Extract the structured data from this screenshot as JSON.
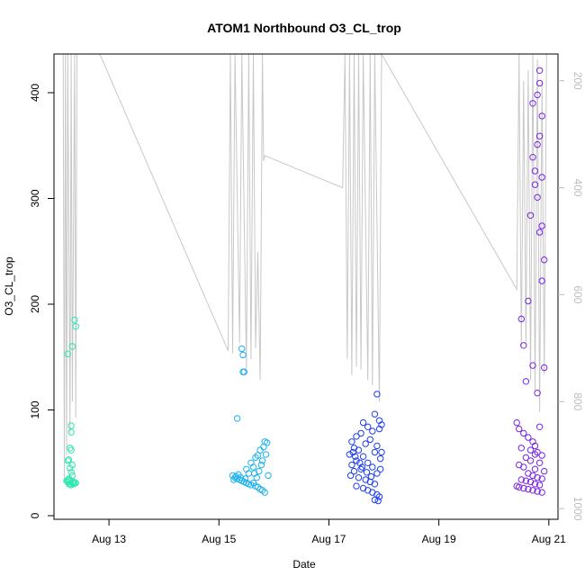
{
  "chart_data": {
    "type": "scatter",
    "title": "ATOM1 Northbound O3_CL_trop",
    "xlabel": "Date",
    "ylabel": "O3_CL_trop",
    "x_range": [
      "2016-08-12T00:00",
      "2016-08-21T04:00"
    ],
    "y_range": [
      0,
      440
    ],
    "x_ticks": [
      {
        "label": "Aug 13",
        "x": "2016-08-13"
      },
      {
        "label": "Aug 15",
        "x": "2016-08-15"
      },
      {
        "label": "Aug 17",
        "x": "2016-08-17"
      },
      {
        "label": "Aug 19",
        "x": "2016-08-19"
      },
      {
        "label": "Aug 21",
        "x": "2016-08-21"
      }
    ],
    "y_ticks": [
      0,
      100,
      200,
      300,
      400
    ],
    "right_axis": {
      "range": [
        1020,
        150
      ],
      "ticks": [
        200,
        400,
        600,
        800,
        1000
      ],
      "color": "#bdbdbd",
      "reversed": true,
      "description": "secondary pressure trace in light gray; axis is unlabeled"
    },
    "grid": false,
    "legend": "none",
    "series": [
      {
        "color": "#2ee6b0",
        "points": [
          [
            "2016-08-12T06:00",
            153
          ],
          [
            "2016-08-12T08:00",
            160
          ],
          [
            "2016-08-12T09:00",
            185
          ],
          [
            "2016-08-12T09:30",
            179
          ],
          [
            "2016-08-12T07:30",
            85
          ],
          [
            "2016-08-12T07:30",
            79
          ],
          [
            "2016-08-12T07:00",
            64
          ],
          [
            "2016-08-12T07:30",
            62
          ],
          [
            "2016-08-12T06:00",
            52
          ],
          [
            "2016-08-12T06:30",
            53
          ],
          [
            "2016-08-12T08:00",
            48
          ],
          [
            "2016-08-12T07:00",
            45
          ],
          [
            "2016-08-12T07:30",
            41
          ],
          [
            "2016-08-12T08:00",
            38
          ],
          [
            "2016-08-12T06:30",
            35
          ],
          [
            "2016-08-12T07:00",
            33
          ],
          [
            "2016-08-12T06:00",
            32
          ],
          [
            "2016-08-12T08:00",
            31
          ],
          [
            "2016-08-12T09:00",
            31
          ],
          [
            "2016-08-12T06:30",
            30
          ],
          [
            "2016-08-12T07:00",
            30
          ],
          [
            "2016-08-12T07:30",
            29
          ],
          [
            "2016-08-12T08:30",
            32
          ],
          [
            "2016-08-12T06:00",
            34
          ],
          [
            "2016-08-12T05:30",
            33
          ],
          [
            "2016-08-12T08:30",
            30
          ],
          [
            "2016-08-12T09:30",
            31
          ]
        ]
      },
      {
        "color": "#1fb2ee",
        "points": [
          [
            "2016-08-15T10:00",
            158
          ],
          [
            "2016-08-15T10:30",
            152
          ],
          [
            "2016-08-15T10:30",
            136
          ],
          [
            "2016-08-15T11:00",
            136
          ],
          [
            "2016-08-15T08:00",
            92
          ],
          [
            "2016-08-15T20:00",
            70
          ],
          [
            "2016-08-15T21:00",
            69
          ],
          [
            "2016-08-15T19:30",
            65
          ],
          [
            "2016-08-15T18:00",
            62
          ],
          [
            "2016-08-15T20:30",
            58
          ],
          [
            "2016-08-15T17:00",
            57
          ],
          [
            "2016-08-15T16:00",
            55
          ],
          [
            "2016-08-15T19:00",
            52
          ],
          [
            "2016-08-15T14:00",
            50
          ],
          [
            "2016-08-15T18:30",
            48
          ],
          [
            "2016-08-15T15:00",
            46
          ],
          [
            "2016-08-15T12:00",
            44
          ],
          [
            "2016-08-15T17:30",
            42
          ],
          [
            "2016-08-15T13:00",
            40
          ],
          [
            "2016-08-15T21:30",
            38
          ],
          [
            "2016-08-15T06:00",
            38
          ],
          [
            "2016-08-15T07:00",
            36
          ],
          [
            "2016-08-15T08:00",
            35
          ],
          [
            "2016-08-15T09:00",
            34
          ],
          [
            "2016-08-15T10:00",
            33
          ],
          [
            "2016-08-15T11:00",
            32
          ],
          [
            "2016-08-15T12:00",
            31
          ],
          [
            "2016-08-15T13:00",
            30
          ],
          [
            "2016-08-15T14:00",
            29
          ],
          [
            "2016-08-15T15:00",
            31
          ],
          [
            "2016-08-15T16:00",
            28
          ],
          [
            "2016-08-15T17:00",
            27
          ],
          [
            "2016-08-15T18:00",
            25
          ],
          [
            "2016-08-15T19:00",
            24
          ],
          [
            "2016-08-15T20:00",
            22
          ],
          [
            "2016-08-15T06:30",
            34
          ],
          [
            "2016-08-15T07:30",
            37
          ],
          [
            "2016-08-15T08:30",
            39
          ],
          [
            "2016-08-15T09:30",
            36
          ],
          [
            "2016-08-15T11:30",
            35
          ],
          [
            "2016-08-15T16:30",
            36
          ],
          [
            "2016-08-15T15:30",
            40
          ]
        ]
      },
      {
        "color": "#1f3ff0",
        "points": [
          [
            "2016-08-17T21:00",
            115
          ],
          [
            "2016-08-17T20:00",
            96
          ],
          [
            "2016-08-17T22:00",
            90
          ],
          [
            "2016-08-17T23:00",
            86
          ],
          [
            "2016-08-17T15:00",
            88
          ],
          [
            "2016-08-17T17:00",
            84
          ],
          [
            "2016-08-17T22:00",
            82
          ],
          [
            "2016-08-17T19:00",
            80
          ],
          [
            "2016-08-17T14:00",
            78
          ],
          [
            "2016-08-17T12:00",
            75
          ],
          [
            "2016-08-17T18:00",
            72
          ],
          [
            "2016-08-17T10:00",
            70
          ],
          [
            "2016-08-17T16:00",
            68
          ],
          [
            "2016-08-17T21:00",
            66
          ],
          [
            "2016-08-17T11:00",
            64
          ],
          [
            "2016-08-17T13:00",
            62
          ],
          [
            "2016-08-17T20:00",
            60
          ],
          [
            "2016-08-17T09:00",
            58
          ],
          [
            "2016-08-17T15:00",
            56
          ],
          [
            "2016-08-17T22:30",
            54
          ],
          [
            "2016-08-17T12:00",
            52
          ],
          [
            "2016-08-17T17:00",
            50
          ],
          [
            "2016-08-17T10:00",
            48
          ],
          [
            "2016-08-17T19:00",
            46
          ],
          [
            "2016-08-17T14:00",
            44
          ],
          [
            "2016-08-17T11:00",
            42
          ],
          [
            "2016-08-17T21:00",
            40
          ],
          [
            "2016-08-17T09:30",
            38
          ],
          [
            "2016-08-17T13:00",
            36
          ],
          [
            "2016-08-17T16:00",
            34
          ],
          [
            "2016-08-17T18:00",
            32
          ],
          [
            "2016-08-17T20:00",
            30
          ],
          [
            "2016-08-17T12:00",
            28
          ],
          [
            "2016-08-17T15:00",
            26
          ],
          [
            "2016-08-17T17:00",
            24
          ],
          [
            "2016-08-17T19:00",
            22
          ],
          [
            "2016-08-17T21:00",
            20
          ],
          [
            "2016-08-17T22:00",
            18
          ],
          [
            "2016-08-17T20:00",
            15
          ],
          [
            "2016-08-17T21:30",
            14
          ],
          [
            "2016-08-17T10:30",
            60
          ],
          [
            "2016-08-17T11:30",
            56
          ],
          [
            "2016-08-17T13:30",
            50
          ],
          [
            "2016-08-17T14:30",
            46
          ],
          [
            "2016-08-17T16:30",
            41
          ],
          [
            "2016-08-17T18:30",
            37
          ],
          [
            "2016-08-17T22:30",
            44
          ],
          [
            "2016-08-17T23:00",
            60
          ]
        ]
      },
      {
        "color": "#7a25e6",
        "points": [
          [
            "2016-08-20T20:00",
            421
          ],
          [
            "2016-08-20T20:00",
            409
          ],
          [
            "2016-08-20T19:00",
            398
          ],
          [
            "2016-08-20T17:00",
            390
          ],
          [
            "2016-08-20T21:00",
            378
          ],
          [
            "2016-08-20T20:00",
            359
          ],
          [
            "2016-08-20T19:00",
            351
          ],
          [
            "2016-08-20T17:00",
            339
          ],
          [
            "2016-08-20T18:00",
            326
          ],
          [
            "2016-08-20T21:00",
            320
          ],
          [
            "2016-08-20T18:00",
            313
          ],
          [
            "2016-08-20T19:00",
            301
          ],
          [
            "2016-08-20T16:00",
            284
          ],
          [
            "2016-08-20T21:00",
            274
          ],
          [
            "2016-08-20T20:00",
            268
          ],
          [
            "2016-08-20T22:00",
            242
          ],
          [
            "2016-08-20T21:00",
            222
          ],
          [
            "2016-08-20T15:00",
            203
          ],
          [
            "2016-08-20T12:00",
            186
          ],
          [
            "2016-08-20T13:00",
            161
          ],
          [
            "2016-08-20T17:00",
            142
          ],
          [
            "2016-08-20T22:00",
            140
          ],
          [
            "2016-08-20T14:00",
            127
          ],
          [
            "2016-08-20T19:00",
            116
          ],
          [
            "2016-08-20T20:00",
            84
          ],
          [
            "2016-08-20T10:00",
            88
          ],
          [
            "2016-08-20T11:00",
            82
          ],
          [
            "2016-08-20T13:00",
            78
          ],
          [
            "2016-08-20T15:00",
            74
          ],
          [
            "2016-08-20T17:00",
            70
          ],
          [
            "2016-08-20T18:00",
            66
          ],
          [
            "2016-08-20T12:00",
            64
          ],
          [
            "2016-08-20T19:00",
            60
          ],
          [
            "2016-08-20T21:00",
            57
          ],
          [
            "2016-08-20T14:00",
            55
          ],
          [
            "2016-08-20T16:00",
            52
          ],
          [
            "2016-08-20T20:00",
            50
          ],
          [
            "2016-08-20T11:00",
            48
          ],
          [
            "2016-08-20T13:00",
            46
          ],
          [
            "2016-08-20T18:00",
            44
          ],
          [
            "2016-08-20T22:00",
            42
          ],
          [
            "2016-08-20T15:00",
            40
          ],
          [
            "2016-08-20T17:00",
            38
          ],
          [
            "2016-08-20T19:00",
            36
          ],
          [
            "2016-08-20T21:00",
            35
          ],
          [
            "2016-08-20T12:00",
            34
          ],
          [
            "2016-08-20T14:00",
            33
          ],
          [
            "2016-08-20T16:00",
            32
          ],
          [
            "2016-08-20T18:00",
            30
          ],
          [
            "2016-08-20T20:00",
            29
          ],
          [
            "2016-08-20T10:00",
            28
          ],
          [
            "2016-08-20T11:00",
            27
          ],
          [
            "2016-08-20T13:00",
            26
          ],
          [
            "2016-08-20T15:00",
            25
          ],
          [
            "2016-08-20T17:00",
            24
          ],
          [
            "2016-08-20T19:00",
            23
          ],
          [
            "2016-08-20T21:00",
            22
          ],
          [
            "2016-08-20T16:00",
            62
          ],
          [
            "2016-08-20T18:00",
            58
          ]
        ]
      }
    ],
    "pressure_trace": {
      "color": "#c8c8c8",
      "points": [
        [
          "2016-08-12T04:00",
          150
        ],
        [
          "2016-08-12T04:30",
          950
        ],
        [
          "2016-08-12T05:00",
          150
        ],
        [
          "2016-08-12T05:30",
          900
        ],
        [
          "2016-08-12T06:00",
          150
        ],
        [
          "2016-08-12T07:00",
          860
        ],
        [
          "2016-08-12T07:30",
          150
        ],
        [
          "2016-08-12T08:00",
          800
        ],
        [
          "2016-08-12T09:00",
          150
        ],
        [
          "2016-08-12T09:30",
          830
        ],
        [
          "2016-08-12T10:00",
          150
        ],
        [
          "2016-08-12T20:00",
          150
        ],
        [
          "2016-08-15T04:00",
          705
        ],
        [
          "2016-08-15T05:00",
          150
        ],
        [
          "2016-08-15T06:00",
          710
        ],
        [
          "2016-08-15T07:00",
          150
        ],
        [
          "2016-08-15T09:00",
          690
        ],
        [
          "2016-08-15T10:00",
          150
        ],
        [
          "2016-08-15T12:00",
          740
        ],
        [
          "2016-08-15T13:00",
          150
        ],
        [
          "2016-08-15T14:00",
          720
        ],
        [
          "2016-08-15T15:00",
          150
        ],
        [
          "2016-08-15T16:00",
          700
        ],
        [
          "2016-08-15T17:00",
          520
        ],
        [
          "2016-08-15T18:00",
          760
        ],
        [
          "2016-08-15T19:00",
          150
        ],
        [
          "2016-08-15T19:30",
          350
        ],
        [
          "2016-08-15T20:00",
          340
        ],
        [
          "2016-08-17T06:00",
          400
        ],
        [
          "2016-08-17T07:00",
          150
        ],
        [
          "2016-08-17T08:00",
          720
        ],
        [
          "2016-08-17T09:00",
          150
        ],
        [
          "2016-08-17T10:00",
          750
        ],
        [
          "2016-08-17T11:00",
          150
        ],
        [
          "2016-08-17T12:00",
          735
        ],
        [
          "2016-08-17T13:00",
          150
        ],
        [
          "2016-08-17T14:00",
          740
        ],
        [
          "2016-08-17T15:00",
          150
        ],
        [
          "2016-08-17T17:00",
          760
        ],
        [
          "2016-08-17T18:00",
          150
        ],
        [
          "2016-08-17T19:00",
          770
        ],
        [
          "2016-08-17T20:00",
          150
        ],
        [
          "2016-08-17T22:00",
          800
        ],
        [
          "2016-08-17T23:00",
          150
        ],
        [
          "2016-08-20T10:00",
          590
        ],
        [
          "2016-08-20T11:00",
          150
        ],
        [
          "2016-08-20T12:00",
          700
        ],
        [
          "2016-08-20T13:00",
          200
        ],
        [
          "2016-08-20T14:00",
          690
        ],
        [
          "2016-08-20T15:00",
          180
        ],
        [
          "2016-08-20T16:00",
          760
        ],
        [
          "2016-08-20T17:00",
          150
        ],
        [
          "2016-08-20T18:00",
          780
        ],
        [
          "2016-08-20T19:00",
          160
        ],
        [
          "2016-08-20T20:00",
          820
        ],
        [
          "2016-08-20T21:00",
          200
        ],
        [
          "2016-08-20T22:00",
          750
        ],
        [
          "2016-08-20T23:00",
          150
        ]
      ]
    }
  }
}
